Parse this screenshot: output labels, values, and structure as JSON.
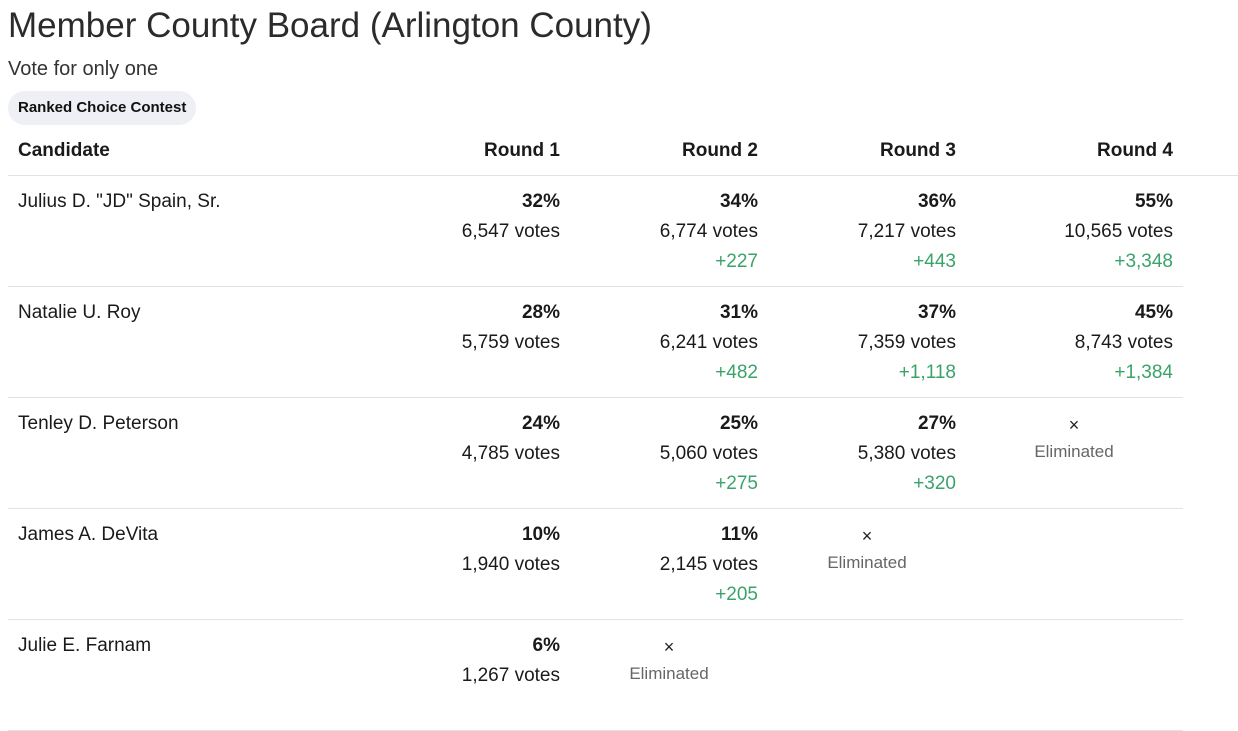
{
  "header": {
    "title": "Member County Board (Arlington County)",
    "subtitle": "Vote for only one",
    "badge": "Ranked Choice Contest"
  },
  "columns": {
    "candidate": "Candidate",
    "rounds": [
      "Round 1",
      "Round 2",
      "Round 3",
      "Round 4"
    ]
  },
  "eliminated": {
    "mark": "×",
    "label": "Eliminated"
  },
  "candidates": [
    {
      "name": "Julius D. \"JD\" Spain, Sr.",
      "rounds": [
        {
          "pct": "32%",
          "votes": "6,547 votes",
          "delta": ""
        },
        {
          "pct": "34%",
          "votes": "6,774 votes",
          "delta": "+227"
        },
        {
          "pct": "36%",
          "votes": "7,217 votes",
          "delta": "+443"
        },
        {
          "pct": "55%",
          "votes": "10,565 votes",
          "delta": "+3,348"
        }
      ]
    },
    {
      "name": "Natalie U. Roy",
      "rounds": [
        {
          "pct": "28%",
          "votes": "5,759 votes",
          "delta": ""
        },
        {
          "pct": "31%",
          "votes": "6,241 votes",
          "delta": "+482"
        },
        {
          "pct": "37%",
          "votes": "7,359 votes",
          "delta": "+1,118"
        },
        {
          "pct": "45%",
          "votes": "8,743 votes",
          "delta": "+1,384"
        }
      ]
    },
    {
      "name": "Tenley D. Peterson",
      "rounds": [
        {
          "pct": "24%",
          "votes": "4,785 votes",
          "delta": ""
        },
        {
          "pct": "25%",
          "votes": "5,060 votes",
          "delta": "+275"
        },
        {
          "pct": "27%",
          "votes": "5,380 votes",
          "delta": "+320"
        }
      ]
    },
    {
      "name": "James A. DeVita",
      "rounds": [
        {
          "pct": "10%",
          "votes": "1,940 votes",
          "delta": ""
        },
        {
          "pct": "11%",
          "votes": "2,145 votes",
          "delta": "+205"
        }
      ]
    },
    {
      "name": "Julie E. Farnam",
      "rounds": [
        {
          "pct": "6%",
          "votes": "1,267 votes",
          "delta": ""
        }
      ]
    }
  ]
}
